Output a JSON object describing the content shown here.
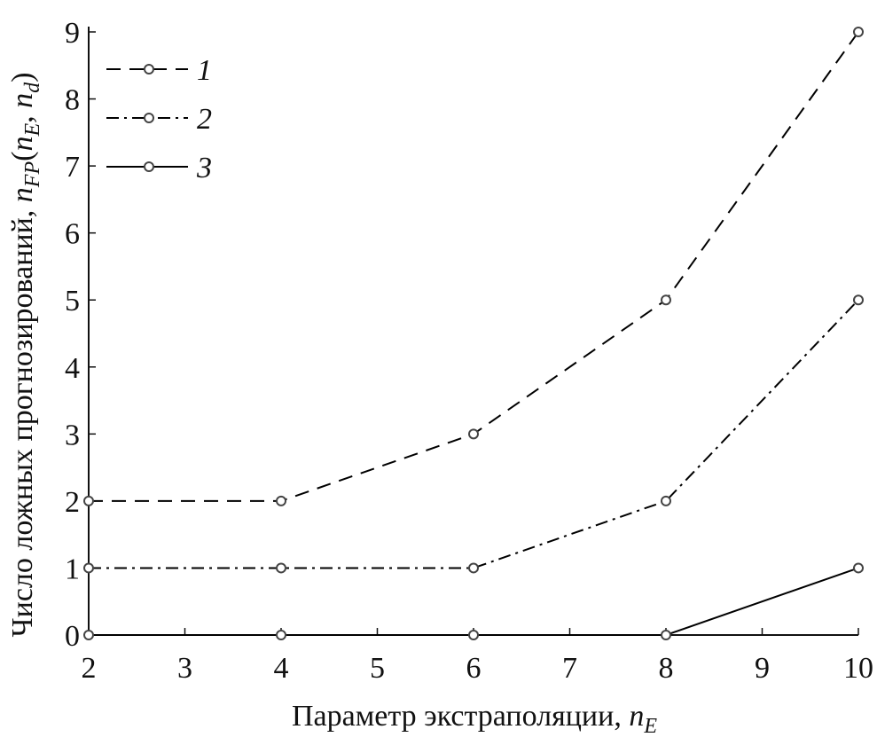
{
  "chart_data": {
    "type": "line",
    "xlabel": [
      "Параметр экстраполяции, ",
      "n",
      "E"
    ],
    "ylabel": [
      "Число ложных прогнозирований, ",
      "n",
      "FP",
      "(",
      "n",
      "E",
      ", ",
      "n",
      "d",
      ")"
    ],
    "x": [
      2,
      4,
      6,
      8,
      10
    ],
    "series": [
      {
        "name": "1",
        "color": "#000000",
        "linestyle": "dashed",
        "values": [
          2,
          2,
          3,
          5,
          9
        ]
      },
      {
        "name": "2",
        "color": "#000000",
        "linestyle": "dashdot",
        "values": [
          1,
          1,
          1,
          2,
          5
        ]
      },
      {
        "name": "3",
        "color": "#000000",
        "linestyle": "solid",
        "values": [
          0,
          0,
          0,
          0,
          1
        ]
      }
    ],
    "xlim": [
      2,
      10
    ],
    "xticks": [
      2,
      3,
      4,
      5,
      6,
      7,
      8,
      9,
      10
    ],
    "ylim": [
      0,
      9
    ],
    "yticks": [
      0,
      1,
      2,
      3,
      4,
      5,
      6,
      7,
      8,
      9
    ],
    "legend": "upper-left"
  }
}
